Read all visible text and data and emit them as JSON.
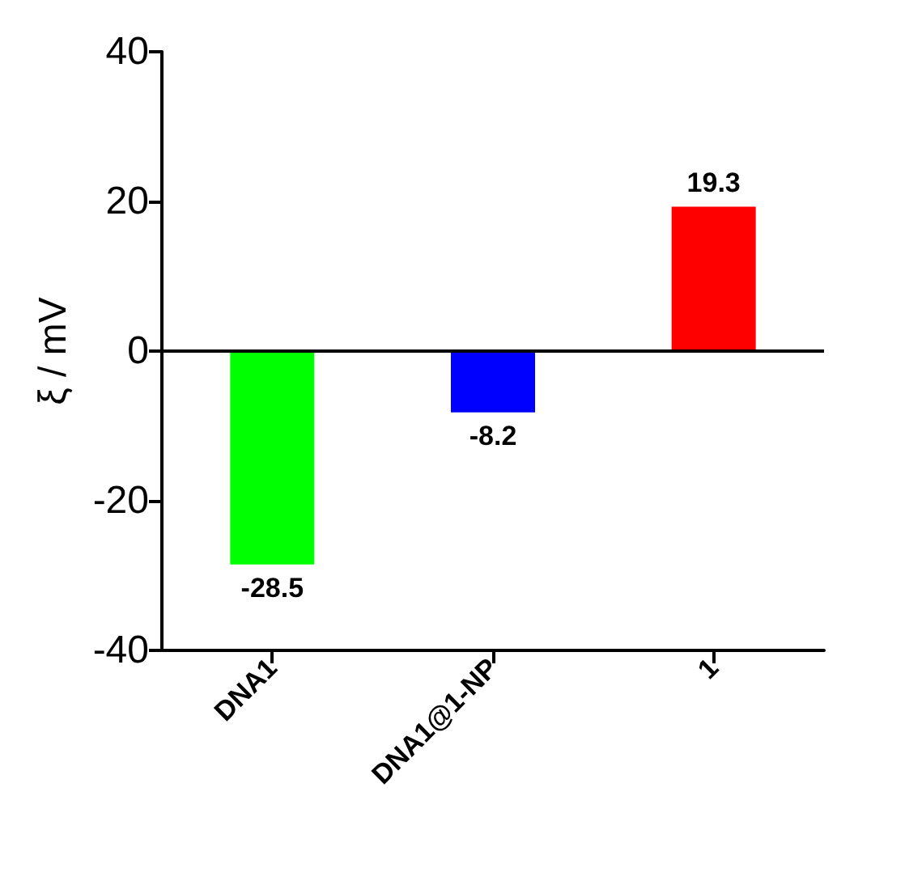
{
  "chart_data": {
    "type": "bar",
    "ylabel": "ξ / mV",
    "categories": [
      "DNA1",
      "DNA1@1-NP",
      "1"
    ],
    "values": [
      -28.5,
      -8.2,
      19.3
    ],
    "colors": [
      "#00ff00",
      "#0000ff",
      "#ff0000"
    ],
    "ylim": [
      -40,
      40
    ],
    "yticks": [
      -40,
      -20,
      0,
      20,
      40
    ],
    "ref_lines": [
      {
        "axis": "y",
        "value": 0
      }
    ],
    "data_labels": true
  }
}
